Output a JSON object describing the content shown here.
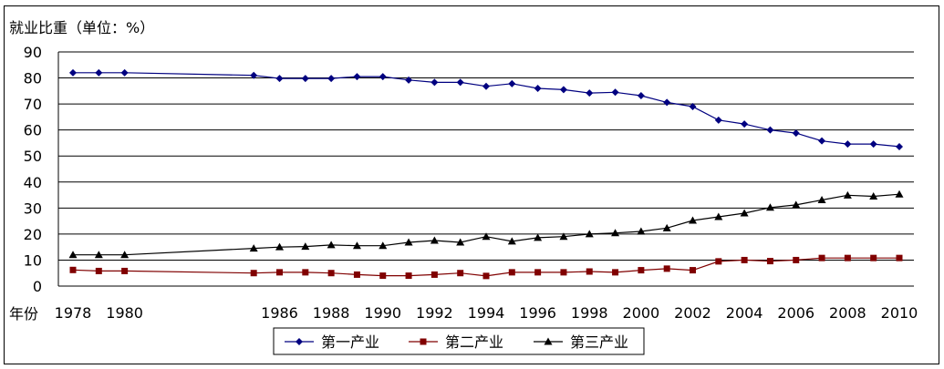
{
  "chart_data": {
    "type": "line",
    "ylabel": "就业比重（单位：%）",
    "xlabel": "年份",
    "ylim": [
      0,
      90
    ],
    "yticks": [
      0,
      10,
      20,
      30,
      40,
      50,
      60,
      70,
      80,
      90
    ],
    "xticks": [
      1978,
      1980,
      1986,
      1988,
      1990,
      1992,
      1994,
      1996,
      1998,
      2000,
      2002,
      2004,
      2006,
      2008,
      2010
    ],
    "x": [
      1978,
      1979,
      1980,
      1985,
      1986,
      1987,
      1988,
      1989,
      1990,
      1991,
      1992,
      1993,
      1994,
      1995,
      1996,
      1997,
      1998,
      1999,
      2000,
      2001,
      2002,
      2003,
      2004,
      2005,
      2006,
      2007,
      2008,
      2009,
      2010
    ],
    "grid": "horizontal",
    "legend": "bottom",
    "series": [
      {
        "name": "第一产业",
        "marker": "diamond",
        "color": "#000080",
        "values": [
          82.0,
          82.0,
          82.0,
          81.0,
          79.8,
          79.8,
          79.8,
          80.5,
          80.5,
          79.2,
          78.3,
          78.3,
          76.8,
          77.8,
          76.0,
          75.5,
          74.2,
          74.5,
          73.2,
          70.6,
          69.0,
          63.8,
          62.3,
          60.0,
          58.8,
          55.8,
          54.6,
          54.6,
          53.6
        ]
      },
      {
        "name": "第二产业",
        "marker": "square",
        "color": "#800000",
        "values": [
          6.2,
          5.8,
          5.8,
          5.0,
          5.3,
          5.3,
          5.0,
          4.4,
          4.0,
          4.0,
          4.4,
          5.0,
          3.9,
          5.3,
          5.3,
          5.3,
          5.6,
          5.3,
          6.1,
          6.7,
          6.1,
          9.5,
          10.0,
          9.6,
          10.0,
          10.8,
          10.8,
          10.8,
          10.8
        ]
      },
      {
        "name": "第三产业",
        "marker": "triangle",
        "color": "#000000",
        "values": [
          12.0,
          12.0,
          12.0,
          14.5,
          15.0,
          15.2,
          15.8,
          15.5,
          15.5,
          16.8,
          17.5,
          16.8,
          19.0,
          17.2,
          18.6,
          19.0,
          20.0,
          20.4,
          21.0,
          22.3,
          25.2,
          26.6,
          28.0,
          30.2,
          31.2,
          33.1,
          34.9,
          34.5,
          35.3
        ]
      }
    ]
  }
}
